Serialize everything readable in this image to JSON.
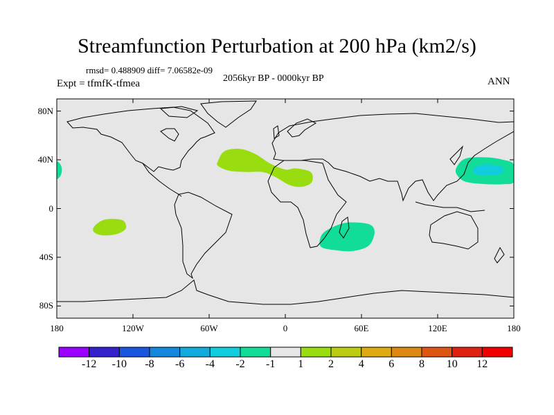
{
  "title": "Streamfunction Perturbation at 200 hPa (km2/s)",
  "stats": "rmsd= 0.488909 diff= 7.06582e-09",
  "subtitle": "2056kyr BP - 0000kyr BP",
  "left_label": "Expt = tfmfK-tfmea",
  "right_label": "ANN",
  "colors": {
    "ocean_land_bg": "#e6e6e6",
    "coast": "#000000"
  },
  "chart_data": {
    "type": "heatmap",
    "projection": "cylindrical-equidistant",
    "xlim": [
      -180,
      180
    ],
    "ylim": [
      -90,
      90
    ],
    "xticks": [
      {
        "value": -180,
        "label": "180"
      },
      {
        "value": -120,
        "label": "120W"
      },
      {
        "value": -60,
        "label": "60W"
      },
      {
        "value": 0,
        "label": "0"
      },
      {
        "value": 60,
        "label": "60E"
      },
      {
        "value": 120,
        "label": "120E"
      },
      {
        "value": 180,
        "label": "180"
      }
    ],
    "yticks": [
      {
        "value": 80,
        "label": "80N"
      },
      {
        "value": 40,
        "label": "40N"
      },
      {
        "value": 0,
        "label": "0"
      },
      {
        "value": -40,
        "label": "40S"
      },
      {
        "value": -80,
        "label": "80S"
      }
    ],
    "colorbar": {
      "levels": [
        "-12",
        "-10",
        "-8",
        "-6",
        "-4",
        "-2",
        "-1",
        "1",
        "2",
        "4",
        "6",
        "8",
        "10",
        "12"
      ],
      "colors": [
        "#9900ff",
        "#3322cc",
        "#1a55dd",
        "#1188dd",
        "#11aadd",
        "#11ccdd",
        "#11dd99",
        "#e6e6e6",
        "#99dd11",
        "#bbcc11",
        "#ddaa11",
        "#dd8811",
        "#dd5511",
        "#dd2211",
        "#ee0000"
      ]
    },
    "anomalies": [
      {
        "name": "north-atlantic-positive",
        "category": "1 to 2",
        "color": "#99dd11",
        "path_lonlat": [
          [
            -53,
            39
          ],
          [
            -48,
            47
          ],
          [
            -36,
            49
          ],
          [
            -24,
            45
          ],
          [
            -12,
            37
          ],
          [
            0,
            32
          ],
          [
            8,
            33
          ],
          [
            20,
            30
          ],
          [
            21,
            22
          ],
          [
            14,
            18
          ],
          [
            4,
            19
          ],
          [
            -8,
            26
          ],
          [
            -18,
            30
          ],
          [
            -30,
            30
          ],
          [
            -44,
            31
          ],
          [
            -53,
            35
          ]
        ]
      },
      {
        "name": "south-pacific-positive",
        "category": "1 to 2",
        "color": "#99dd11",
        "path_lonlat": [
          [
            -150,
            -14
          ],
          [
            -142,
            -9
          ],
          [
            -130,
            -9
          ],
          [
            -126,
            -12
          ],
          [
            -126,
            -17
          ],
          [
            -133,
            -21
          ],
          [
            -144,
            -22
          ],
          [
            -151,
            -19
          ]
        ]
      },
      {
        "name": "north-pacific-negative",
        "category": "-2 to -1",
        "color": "#11dd99",
        "path_lonlat": [
          [
            135,
            34
          ],
          [
            142,
            41
          ],
          [
            158,
            42
          ],
          [
            172,
            40
          ],
          [
            180,
            36
          ],
          [
            180,
            22
          ],
          [
            172,
            20
          ],
          [
            158,
            20
          ],
          [
            142,
            22
          ],
          [
            135,
            28
          ]
        ]
      },
      {
        "name": "north-pacific-core",
        "category": "-4 to -2",
        "color": "#11ccdd",
        "path_lonlat": [
          [
            148,
            33
          ],
          [
            156,
            36
          ],
          [
            168,
            35
          ],
          [
            172,
            32
          ],
          [
            168,
            28
          ],
          [
            156,
            27
          ],
          [
            149,
            29
          ]
        ]
      },
      {
        "name": "southwest-indian-negative",
        "category": "-2 to -1",
        "color": "#11dd99",
        "path_lonlat": [
          [
            27,
            -27
          ],
          [
            31,
            -19
          ],
          [
            46,
            -12
          ],
          [
            62,
            -12
          ],
          [
            69,
            -15
          ],
          [
            70,
            -22
          ],
          [
            65,
            -31
          ],
          [
            52,
            -35
          ],
          [
            38,
            -34
          ],
          [
            29,
            -32
          ]
        ]
      },
      {
        "name": "dateline-edge-negative",
        "category": "-2 to -1",
        "color": "#11dd99",
        "path_lonlat": [
          [
            -180,
            38
          ],
          [
            -177,
            36
          ],
          [
            -176,
            32
          ],
          [
            -177,
            27
          ],
          [
            -180,
            25
          ]
        ]
      }
    ]
  }
}
